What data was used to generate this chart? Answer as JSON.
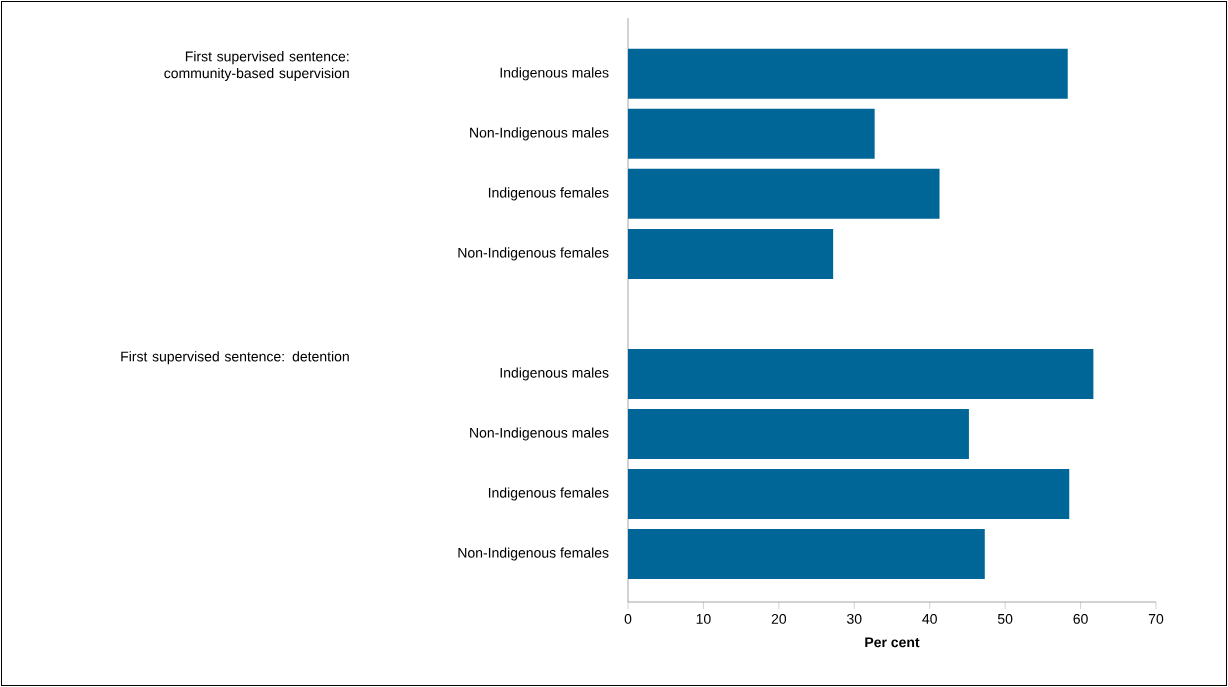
{
  "chart_data": {
    "type": "bar",
    "orientation": "horizontal",
    "xlabel": "Per cent",
    "categories": [
      "Indigenous males",
      "Non-Indigenous males",
      "Indigenous females",
      "Non-Indigenous females",
      null,
      "Indigenous males",
      "Non-Indigenous males",
      "Indigenous females",
      "Non-Indigenous females"
    ],
    "values": [
      58.3,
      32.7,
      41.3,
      27.2,
      null,
      61.7,
      45.2,
      58.5,
      47.3
    ],
    "color": "#006698",
    "xlim": [
      0,
      70
    ],
    "xticks": [
      0,
      10,
      20,
      30,
      40,
      50,
      60,
      70
    ],
    "annotations": [
      "First supervised sentence: community-based supervision",
      "First supervised sentence: detention"
    ]
  }
}
